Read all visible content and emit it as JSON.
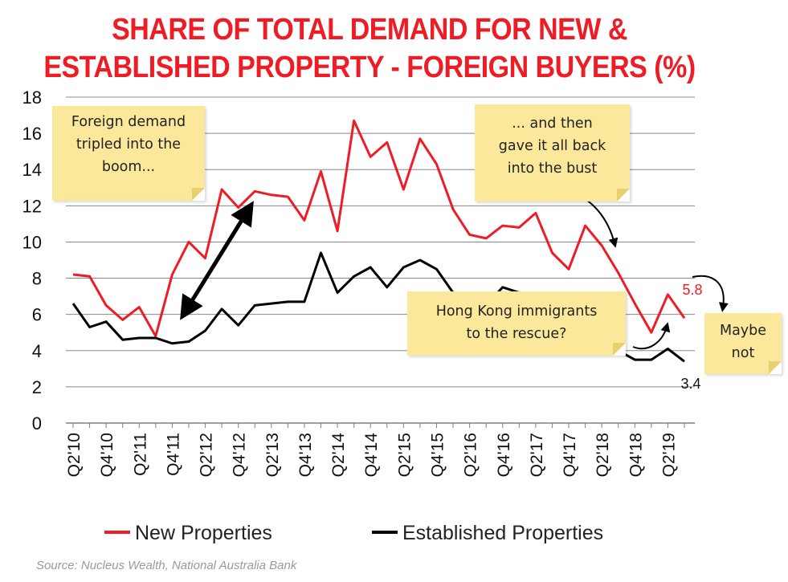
{
  "title_line1": "SHARE OF TOTAL DEMAND FOR NEW &",
  "title_line2": "ESTABLISHED PROPERTY - FOREIGN BUYERS (%)",
  "source": "Source: Nucleus Wealth, National Australia Bank",
  "notes": {
    "boom": "Foreign demand\ntripled into the\nboom...",
    "bust": "... and then\ngave it all back\ninto the bust",
    "hk": "Hong Kong immigrants\nto the rescue?",
    "maybe": "Maybe\nnot"
  },
  "colors": {
    "new": "#ee1c25",
    "established": "#000000",
    "title": "#ee1c25",
    "note_bg": "#fbe89a"
  },
  "chart_data": {
    "type": "line",
    "title": "SHARE OF TOTAL DEMAND FOR NEW & ESTABLISHED PROPERTY - FOREIGN BUYERS (%)",
    "ylim": [
      0,
      18
    ],
    "yticks": [
      0,
      2,
      4,
      6,
      8,
      10,
      12,
      14,
      16,
      18
    ],
    "grid": true,
    "legend_position": "bottom",
    "x": [
      "Q2'10",
      "Q3'10",
      "Q4'10",
      "Q1'11",
      "Q2'11",
      "Q3'11",
      "Q4'11",
      "Q1'12",
      "Q2'12",
      "Q3'12",
      "Q4'12",
      "Q1'13",
      "Q2'13",
      "Q3'13",
      "Q4'13",
      "Q1'14",
      "Q2'14",
      "Q3'14",
      "Q4'14",
      "Q1'15",
      "Q2'15",
      "Q3'15",
      "Q4'15",
      "Q1'16",
      "Q2'16",
      "Q3'16",
      "Q4'16",
      "Q1'17",
      "Q2'17",
      "Q3'17",
      "Q4'17",
      "Q1'18",
      "Q2'18",
      "Q3'18",
      "Q4'18",
      "Q1'19",
      "Q2'19",
      "Q3'19"
    ],
    "xtick_labels": [
      "Q2'10",
      "Q4'10",
      "Q2'11",
      "Q4'11",
      "Q2'12",
      "Q4'12",
      "Q2'13",
      "Q4'13",
      "Q2'14",
      "Q4'14",
      "Q2'15",
      "Q4'15",
      "Q2'16",
      "Q4'16",
      "Q2'17",
      "Q4'17",
      "Q2'18",
      "Q4'18",
      "Q2'19"
    ],
    "series": [
      {
        "name": "New Properties",
        "color": "#ee1c25",
        "values": [
          8.2,
          8.1,
          6.5,
          5.7,
          6.4,
          4.8,
          8.2,
          10.0,
          9.1,
          12.9,
          11.9,
          12.8,
          12.6,
          12.5,
          11.2,
          13.9,
          10.6,
          16.7,
          14.7,
          15.5,
          12.9,
          15.7,
          14.3,
          11.8,
          10.4,
          10.2,
          10.9,
          10.8,
          11.6,
          9.4,
          8.5,
          10.9,
          9.8,
          8.3,
          6.6,
          5.0,
          7.1,
          5.8
        ]
      },
      {
        "name": "Established Properties",
        "color": "#000000",
        "values": [
          6.6,
          5.3,
          5.6,
          4.6,
          4.7,
          4.7,
          4.4,
          4.5,
          5.1,
          6.3,
          5.4,
          6.5,
          6.6,
          6.7,
          6.7,
          9.4,
          7.2,
          8.1,
          8.6,
          7.5,
          8.6,
          9.0,
          8.5,
          7.2,
          7.1,
          6.5,
          7.5,
          7.2,
          5.5,
          4.9,
          4.9,
          4.4,
          4.2,
          4.0,
          3.5,
          3.5,
          4.1,
          3.4
        ]
      }
    ],
    "end_labels": {
      "new": "5.8",
      "established": "3.4"
    }
  },
  "legend": {
    "new": "New Properties",
    "established": "Established Properties"
  }
}
